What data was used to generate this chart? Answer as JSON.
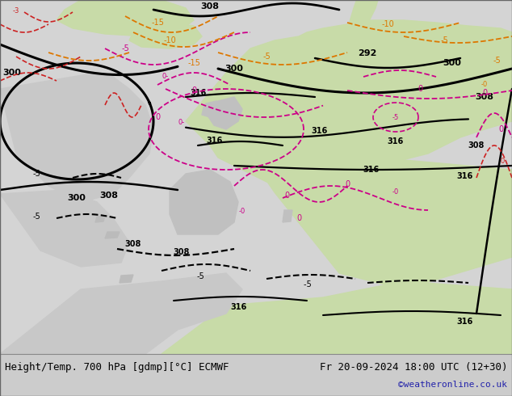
{
  "title_left": "Height/Temp. 700 hPa [gdmp][°C] ECMWF",
  "title_right": "Fr 20-09-2024 18:00 UTC (12+30)",
  "credit": "©weatheronline.co.uk",
  "bg_land_color": "#c8dba8",
  "bg_sea_color": "#d4d4d4",
  "bg_grey_color": "#b8b8b8",
  "bottom_bar_color": "#cccccc",
  "title_font_size": 9,
  "credit_color": "#2222aa",
  "black_line_color": "#000000",
  "magenta_color": "#cc0088",
  "orange_color": "#dd7700",
  "red_color": "#cc2222",
  "figsize": [
    6.34,
    4.9
  ],
  "dpi": 100
}
